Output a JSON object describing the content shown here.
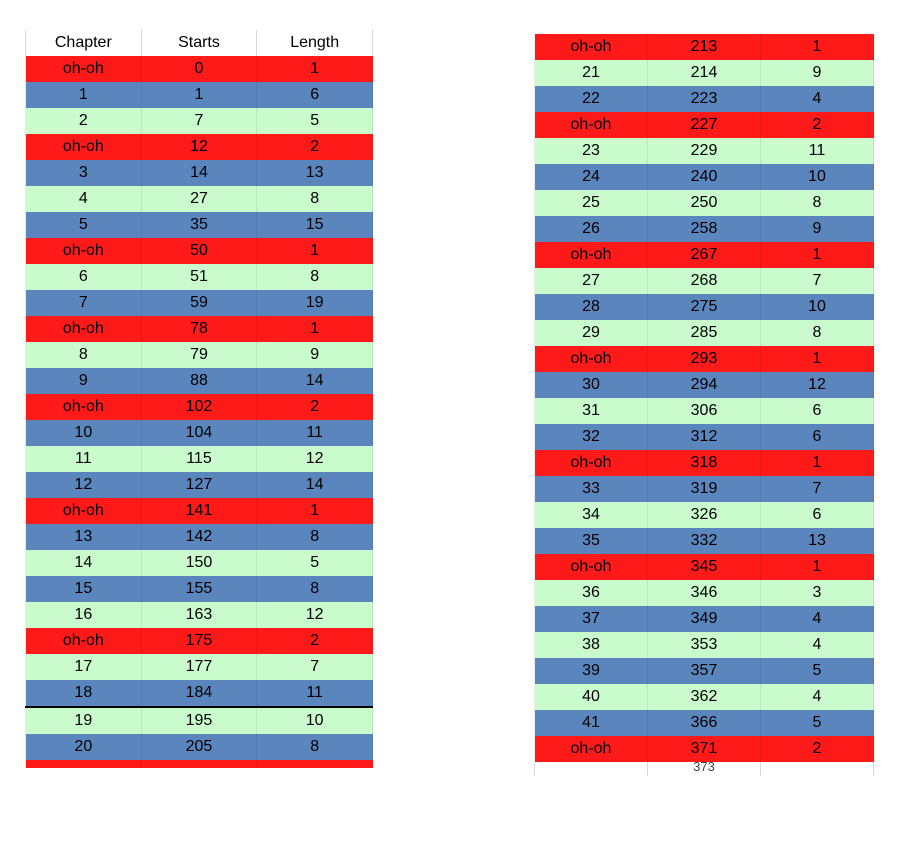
{
  "left_table": {
    "headers": [
      "Chapter",
      "Starts",
      "Length"
    ],
    "rows": [
      {
        "c": "oh-oh",
        "s": "0",
        "l": "1",
        "color": "red"
      },
      {
        "c": "1",
        "s": "1",
        "l": "6",
        "color": "blue"
      },
      {
        "c": "2",
        "s": "7",
        "l": "5",
        "color": "green"
      },
      {
        "c": "oh-oh",
        "s": "12",
        "l": "2",
        "color": "red"
      },
      {
        "c": "3",
        "s": "14",
        "l": "13",
        "color": "blue"
      },
      {
        "c": "4",
        "s": "27",
        "l": "8",
        "color": "green"
      },
      {
        "c": "5",
        "s": "35",
        "l": "15",
        "color": "blue"
      },
      {
        "c": "oh-oh",
        "s": "50",
        "l": "1",
        "color": "red"
      },
      {
        "c": "6",
        "s": "51",
        "l": "8",
        "color": "green"
      },
      {
        "c": "7",
        "s": "59",
        "l": "19",
        "color": "blue"
      },
      {
        "c": "oh-oh",
        "s": "78",
        "l": "1",
        "color": "red"
      },
      {
        "c": "8",
        "s": "79",
        "l": "9",
        "color": "green"
      },
      {
        "c": "9",
        "s": "88",
        "l": "14",
        "color": "blue"
      },
      {
        "c": "oh-oh",
        "s": "102",
        "l": "2",
        "color": "red"
      },
      {
        "c": "10",
        "s": "104",
        "l": "11",
        "color": "blue"
      },
      {
        "c": "11",
        "s": "115",
        "l": "12",
        "color": "green"
      },
      {
        "c": "12",
        "s": "127",
        "l": "14",
        "color": "blue"
      },
      {
        "c": "oh-oh",
        "s": "141",
        "l": "1",
        "color": "red"
      },
      {
        "c": "13",
        "s": "142",
        "l": "8",
        "color": "blue"
      },
      {
        "c": "14",
        "s": "150",
        "l": "5",
        "color": "green"
      },
      {
        "c": "15",
        "s": "155",
        "l": "8",
        "color": "blue"
      },
      {
        "c": "16",
        "s": "163",
        "l": "12",
        "color": "green"
      },
      {
        "c": "oh-oh",
        "s": "175",
        "l": "2",
        "color": "red"
      },
      {
        "c": "17",
        "s": "177",
        "l": "7",
        "color": "green"
      },
      {
        "c": "18",
        "s": "184",
        "l": "11",
        "color": "blue"
      },
      {
        "c": "19",
        "s": "195",
        "l": "10",
        "color": "green",
        "sep": true
      },
      {
        "c": "20",
        "s": "205",
        "l": "8",
        "color": "blue"
      }
    ]
  },
  "right_table": {
    "rows": [
      {
        "c": "oh-oh",
        "s": "213",
        "l": "1",
        "color": "red"
      },
      {
        "c": "21",
        "s": "214",
        "l": "9",
        "color": "green"
      },
      {
        "c": "22",
        "s": "223",
        "l": "4",
        "color": "blue"
      },
      {
        "c": "oh-oh",
        "s": "227",
        "l": "2",
        "color": "red"
      },
      {
        "c": "23",
        "s": "229",
        "l": "11",
        "color": "green"
      },
      {
        "c": "24",
        "s": "240",
        "l": "10",
        "color": "blue"
      },
      {
        "c": "25",
        "s": "250",
        "l": "8",
        "color": "green"
      },
      {
        "c": "26",
        "s": "258",
        "l": "9",
        "color": "blue"
      },
      {
        "c": "oh-oh",
        "s": "267",
        "l": "1",
        "color": "red"
      },
      {
        "c": "27",
        "s": "268",
        "l": "7",
        "color": "green"
      },
      {
        "c": "28",
        "s": "275",
        "l": "10",
        "color": "blue"
      },
      {
        "c": "29",
        "s": "285",
        "l": "8",
        "color": "green"
      },
      {
        "c": "oh-oh",
        "s": "293",
        "l": "1",
        "color": "red"
      },
      {
        "c": "30",
        "s": "294",
        "l": "12",
        "color": "blue"
      },
      {
        "c": "31",
        "s": "306",
        "l": "6",
        "color": "green"
      },
      {
        "c": "32",
        "s": "312",
        "l": "6",
        "color": "blue"
      },
      {
        "c": "oh-oh",
        "s": "318",
        "l": "1",
        "color": "red"
      },
      {
        "c": "33",
        "s": "319",
        "l": "7",
        "color": "blue"
      },
      {
        "c": "34",
        "s": "326",
        "l": "6",
        "color": "green"
      },
      {
        "c": "35",
        "s": "332",
        "l": "13",
        "color": "blue"
      },
      {
        "c": "oh-oh",
        "s": "345",
        "l": "1",
        "color": "red"
      },
      {
        "c": "36",
        "s": "346",
        "l": "3",
        "color": "green"
      },
      {
        "c": "37",
        "s": "349",
        "l": "4",
        "color": "blue"
      },
      {
        "c": "38",
        "s": "353",
        "l": "4",
        "color": "green"
      },
      {
        "c": "39",
        "s": "357",
        "l": "5",
        "color": "blue"
      },
      {
        "c": "40",
        "s": "362",
        "l": "4",
        "color": "green"
      },
      {
        "c": "41",
        "s": "366",
        "l": "5",
        "color": "blue"
      },
      {
        "c": "oh-oh",
        "s": "371",
        "l": "2",
        "color": "red"
      }
    ],
    "partial_next": "373"
  },
  "colors": {
    "red": "#ff1a1a",
    "blue": "#5b86bd",
    "green": "#c9fbcd"
  }
}
